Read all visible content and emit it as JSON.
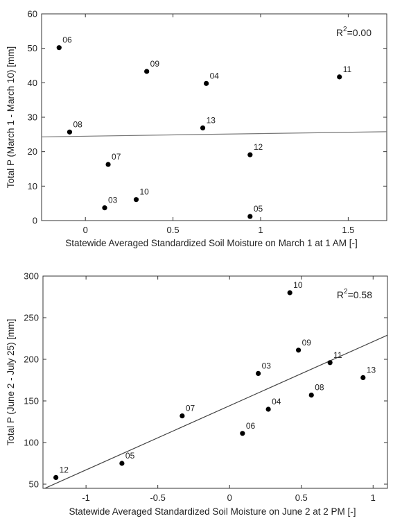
{
  "chart_data": [
    {
      "type": "scatter",
      "xlabel": "Statewide Averaged Standardized Soil Moisture on March 1 at 1 AM [-]",
      "ylabel": "Total P (March 1 - March 10) [mm]",
      "xlim": [
        -0.25,
        1.72
      ],
      "ylim": [
        0,
        60
      ],
      "xticks": [
        0,
        0.5,
        1,
        1.5
      ],
      "xtick_labels": [
        "0",
        "0.5",
        "1",
        "1.5"
      ],
      "yticks": [
        0,
        10,
        20,
        30,
        40,
        50,
        60
      ],
      "ytick_labels": [
        "0",
        "10",
        "20",
        "30",
        "40",
        "50",
        "60"
      ],
      "r2": {
        "prefix": "R",
        "sup": "2",
        "suffix": "=0.00"
      },
      "trend_line": {
        "x": [
          -0.25,
          1.72
        ],
        "y": [
          24.3,
          25.8
        ]
      },
      "points": [
        {
          "label": "06",
          "x": -0.15,
          "y": 50.2
        },
        {
          "label": "09",
          "x": 0.35,
          "y": 43.3
        },
        {
          "label": "04",
          "x": 0.69,
          "y": 39.8
        },
        {
          "label": "11",
          "x": 1.45,
          "y": 41.7
        },
        {
          "label": "08",
          "x": -0.09,
          "y": 25.7
        },
        {
          "label": "13",
          "x": 0.67,
          "y": 26.9
        },
        {
          "label": "12",
          "x": 0.94,
          "y": 19.1
        },
        {
          "label": "07",
          "x": 0.13,
          "y": 16.3
        },
        {
          "label": "10",
          "x": 0.29,
          "y": 6.1
        },
        {
          "label": "03",
          "x": 0.11,
          "y": 3.7
        },
        {
          "label": "05",
          "x": 0.94,
          "y": 1.2
        }
      ]
    },
    {
      "type": "scatter",
      "xlabel": "Statewide Averaged Standardized Soil Moisture on June 2 at 2 PM [-]",
      "ylabel": "Total P (June 2 - July 25) [mm]",
      "xlim": [
        -1.3,
        1.1
      ],
      "ylim": [
        45,
        300
      ],
      "xticks": [
        -1,
        -0.5,
        0,
        0.5,
        1
      ],
      "xtick_labels": [
        "-1",
        "-0.5",
        "0",
        "0.5",
        "1"
      ],
      "yticks": [
        50,
        100,
        150,
        200,
        250,
        300
      ],
      "ytick_labels": [
        "50",
        "100",
        "150",
        "200",
        "250",
        "300"
      ],
      "r2": {
        "prefix": "R",
        "sup": "2",
        "suffix": "=0.58"
      },
      "trend_line": {
        "x": [
          -1.3,
          1.1
        ],
        "y": [
          44,
          229
        ]
      },
      "points": [
        {
          "label": "10",
          "x": 0.42,
          "y": 280
        },
        {
          "label": "09",
          "x": 0.48,
          "y": 211
        },
        {
          "label": "11",
          "x": 0.7,
          "y": 196
        },
        {
          "label": "03",
          "x": 0.2,
          "y": 183
        },
        {
          "label": "13",
          "x": 0.93,
          "y": 178
        },
        {
          "label": "08",
          "x": 0.57,
          "y": 157
        },
        {
          "label": "04",
          "x": 0.27,
          "y": 140
        },
        {
          "label": "07",
          "x": -0.33,
          "y": 132
        },
        {
          "label": "06",
          "x": 0.09,
          "y": 111
        },
        {
          "label": "05",
          "x": -0.75,
          "y": 75
        },
        {
          "label": "12",
          "x": -1.21,
          "y": 58
        }
      ]
    }
  ]
}
